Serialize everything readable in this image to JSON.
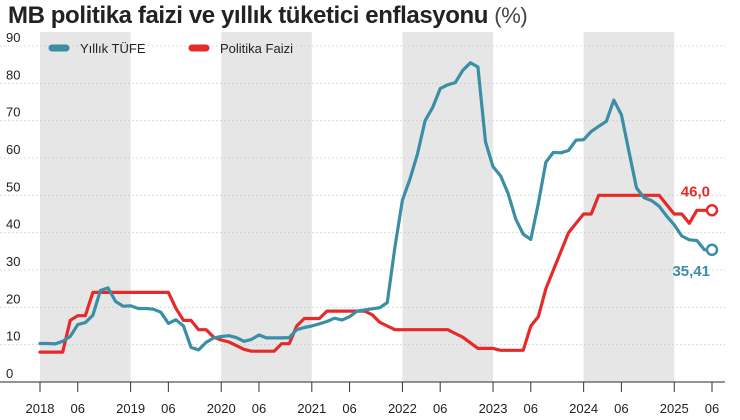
{
  "chart_data": {
    "type": "line",
    "title": "MB politika faizi ve yıllık tüketici enflasyonu",
    "unit": "(%)",
    "ylim": [
      0,
      90
    ],
    "y_ticks": [
      0,
      10,
      20,
      30,
      40,
      50,
      60,
      70,
      80,
      90
    ],
    "x_range": [
      "2018-01",
      "2025-06"
    ],
    "x_ticks": [
      {
        "label": "2018",
        "date": "2018-01"
      },
      {
        "label": "06",
        "date": "2018-06"
      },
      {
        "label": "2019",
        "date": "2019-01"
      },
      {
        "label": "06",
        "date": "2019-06"
      },
      {
        "label": "2020",
        "date": "2020-01"
      },
      {
        "label": "06",
        "date": "2020-06"
      },
      {
        "label": "2021",
        "date": "2021-01"
      },
      {
        "label": "06",
        "date": "2021-06"
      },
      {
        "label": "2022",
        "date": "2022-01"
      },
      {
        "label": "06",
        "date": "2022-06"
      },
      {
        "label": "2023",
        "date": "2023-01"
      },
      {
        "label": "06",
        "date": "2023-06"
      },
      {
        "label": "2024",
        "date": "2024-01"
      },
      {
        "label": "06",
        "date": "2024-06"
      },
      {
        "label": "2025",
        "date": "2025-01"
      },
      {
        "label": "06",
        "date": "2025-06"
      }
    ],
    "shaded_years": [
      "2018",
      "2020",
      "2022",
      "2024"
    ],
    "grid": "horizontal",
    "legend_position": "top-left",
    "series": [
      {
        "name": "Yıllık TÜFE",
        "color": "#3a8ea5",
        "end_label": "35,41",
        "points": [
          [
            "2018-01",
            10.3
          ],
          [
            "2018-02",
            10.3
          ],
          [
            "2018-03",
            10.2
          ],
          [
            "2018-04",
            10.9
          ],
          [
            "2018-05",
            12.2
          ],
          [
            "2018-06",
            15.4
          ],
          [
            "2018-07",
            15.9
          ],
          [
            "2018-08",
            17.9
          ],
          [
            "2018-09",
            24.5
          ],
          [
            "2018-10",
            25.2
          ],
          [
            "2018-11",
            21.6
          ],
          [
            "2018-12",
            20.3
          ],
          [
            "2019-01",
            20.4
          ],
          [
            "2019-02",
            19.7
          ],
          [
            "2019-03",
            19.7
          ],
          [
            "2019-04",
            19.5
          ],
          [
            "2019-05",
            18.7
          ],
          [
            "2019-06",
            15.7
          ],
          [
            "2019-07",
            16.7
          ],
          [
            "2019-08",
            15.0
          ],
          [
            "2019-09",
            9.3
          ],
          [
            "2019-10",
            8.6
          ],
          [
            "2019-11",
            10.6
          ],
          [
            "2019-12",
            11.8
          ],
          [
            "2020-01",
            12.2
          ],
          [
            "2020-02",
            12.4
          ],
          [
            "2020-03",
            11.9
          ],
          [
            "2020-04",
            10.9
          ],
          [
            "2020-05",
            11.4
          ],
          [
            "2020-06",
            12.6
          ],
          [
            "2020-07",
            11.8
          ],
          [
            "2020-08",
            11.8
          ],
          [
            "2020-09",
            11.8
          ],
          [
            "2020-10",
            11.9
          ],
          [
            "2020-11",
            14.0
          ],
          [
            "2020-12",
            14.6
          ],
          [
            "2021-01",
            15.0
          ],
          [
            "2021-02",
            15.6
          ],
          [
            "2021-03",
            16.2
          ],
          [
            "2021-04",
            17.1
          ],
          [
            "2021-05",
            16.6
          ],
          [
            "2021-06",
            17.5
          ],
          [
            "2021-07",
            19.0
          ],
          [
            "2021-08",
            19.3
          ],
          [
            "2021-09",
            19.6
          ],
          [
            "2021-10",
            19.9
          ],
          [
            "2021-11",
            21.3
          ],
          [
            "2021-12",
            36.1
          ],
          [
            "2022-01",
            48.7
          ],
          [
            "2022-02",
            54.4
          ],
          [
            "2022-03",
            61.1
          ],
          [
            "2022-04",
            70.0
          ],
          [
            "2022-05",
            73.5
          ],
          [
            "2022-06",
            78.6
          ],
          [
            "2022-07",
            79.6
          ],
          [
            "2022-08",
            80.2
          ],
          [
            "2022-09",
            83.5
          ],
          [
            "2022-10",
            85.5
          ],
          [
            "2022-11",
            84.4
          ],
          [
            "2022-12",
            64.3
          ],
          [
            "2023-01",
            57.7
          ],
          [
            "2023-02",
            55.2
          ],
          [
            "2023-03",
            50.5
          ],
          [
            "2023-04",
            43.7
          ],
          [
            "2023-05",
            39.6
          ],
          [
            "2023-06",
            38.2
          ],
          [
            "2023-07",
            47.8
          ],
          [
            "2023-08",
            58.9
          ],
          [
            "2023-09",
            61.5
          ],
          [
            "2023-10",
            61.4
          ],
          [
            "2023-11",
            62.0
          ],
          [
            "2023-12",
            64.8
          ],
          [
            "2024-01",
            64.9
          ],
          [
            "2024-02",
            67.1
          ],
          [
            "2024-03",
            68.5
          ],
          [
            "2024-04",
            69.8
          ],
          [
            "2024-05",
            75.5
          ],
          [
            "2024-06",
            71.6
          ],
          [
            "2024-07",
            61.8
          ],
          [
            "2024-08",
            52.0
          ],
          [
            "2024-09",
            49.4
          ],
          [
            "2024-10",
            48.6
          ],
          [
            "2024-11",
            47.1
          ],
          [
            "2024-12",
            44.4
          ],
          [
            "2025-01",
            42.1
          ],
          [
            "2025-02",
            39.1
          ],
          [
            "2025-03",
            38.1
          ],
          [
            "2025-04",
            37.9
          ],
          [
            "2025-05",
            35.4
          ],
          [
            "2025-06",
            35.41
          ]
        ]
      },
      {
        "name": "Politika Faizi",
        "color": "#e52a2a",
        "end_label": "46,0",
        "points": [
          [
            "2018-01",
            8.0
          ],
          [
            "2018-02",
            8.0
          ],
          [
            "2018-03",
            8.0
          ],
          [
            "2018-04",
            8.0
          ],
          [
            "2018-05",
            16.5
          ],
          [
            "2018-06",
            17.75
          ],
          [
            "2018-07",
            17.75
          ],
          [
            "2018-08",
            24.0
          ],
          [
            "2018-09",
            24.0
          ],
          [
            "2018-10",
            24.0
          ],
          [
            "2018-11",
            24.0
          ],
          [
            "2018-12",
            24.0
          ],
          [
            "2019-01",
            24.0
          ],
          [
            "2019-02",
            24.0
          ],
          [
            "2019-03",
            24.0
          ],
          [
            "2019-04",
            24.0
          ],
          [
            "2019-05",
            24.0
          ],
          [
            "2019-06",
            24.0
          ],
          [
            "2019-07",
            19.75
          ],
          [
            "2019-08",
            16.5
          ],
          [
            "2019-09",
            16.5
          ],
          [
            "2019-10",
            14.0
          ],
          [
            "2019-11",
            14.0
          ],
          [
            "2019-12",
            12.0
          ],
          [
            "2020-01",
            11.25
          ],
          [
            "2020-02",
            10.75
          ],
          [
            "2020-03",
            9.75
          ],
          [
            "2020-04",
            8.75
          ],
          [
            "2020-05",
            8.25
          ],
          [
            "2020-06",
            8.25
          ],
          [
            "2020-07",
            8.25
          ],
          [
            "2020-08",
            8.25
          ],
          [
            "2020-09",
            10.25
          ],
          [
            "2020-10",
            10.25
          ],
          [
            "2020-11",
            15.0
          ],
          [
            "2020-12",
            17.0
          ],
          [
            "2021-01",
            17.0
          ],
          [
            "2021-02",
            17.0
          ],
          [
            "2021-03",
            19.0
          ],
          [
            "2021-04",
            19.0
          ],
          [
            "2021-05",
            19.0
          ],
          [
            "2021-06",
            19.0
          ],
          [
            "2021-07",
            19.0
          ],
          [
            "2021-08",
            19.0
          ],
          [
            "2021-09",
            18.0
          ],
          [
            "2021-10",
            16.0
          ],
          [
            "2021-11",
            15.0
          ],
          [
            "2021-12",
            14.0
          ],
          [
            "2022-01",
            14.0
          ],
          [
            "2022-02",
            14.0
          ],
          [
            "2022-03",
            14.0
          ],
          [
            "2022-04",
            14.0
          ],
          [
            "2022-05",
            14.0
          ],
          [
            "2022-06",
            14.0
          ],
          [
            "2022-07",
            14.0
          ],
          [
            "2022-08",
            13.0
          ],
          [
            "2022-09",
            12.0
          ],
          [
            "2022-10",
            10.5
          ],
          [
            "2022-11",
            9.0
          ],
          [
            "2022-12",
            9.0
          ],
          [
            "2023-01",
            9.0
          ],
          [
            "2023-02",
            8.5
          ],
          [
            "2023-03",
            8.5
          ],
          [
            "2023-04",
            8.5
          ],
          [
            "2023-05",
            8.5
          ],
          [
            "2023-06",
            15.0
          ],
          [
            "2023-07",
            17.5
          ],
          [
            "2023-08",
            25.0
          ],
          [
            "2023-09",
            30.0
          ],
          [
            "2023-10",
            35.0
          ],
          [
            "2023-11",
            40.0
          ],
          [
            "2023-12",
            42.5
          ],
          [
            "2024-01",
            45.0
          ],
          [
            "2024-02",
            45.0
          ],
          [
            "2024-03",
            50.0
          ],
          [
            "2024-04",
            50.0
          ],
          [
            "2024-05",
            50.0
          ],
          [
            "2024-06",
            50.0
          ],
          [
            "2024-07",
            50.0
          ],
          [
            "2024-08",
            50.0
          ],
          [
            "2024-09",
            50.0
          ],
          [
            "2024-10",
            50.0
          ],
          [
            "2024-11",
            50.0
          ],
          [
            "2024-12",
            47.5
          ],
          [
            "2025-01",
            45.0
          ],
          [
            "2025-02",
            45.0
          ],
          [
            "2025-03",
            42.5
          ],
          [
            "2025-04",
            46.0
          ],
          [
            "2025-05",
            46.0
          ],
          [
            "2025-06",
            46.0
          ]
        ]
      }
    ]
  }
}
